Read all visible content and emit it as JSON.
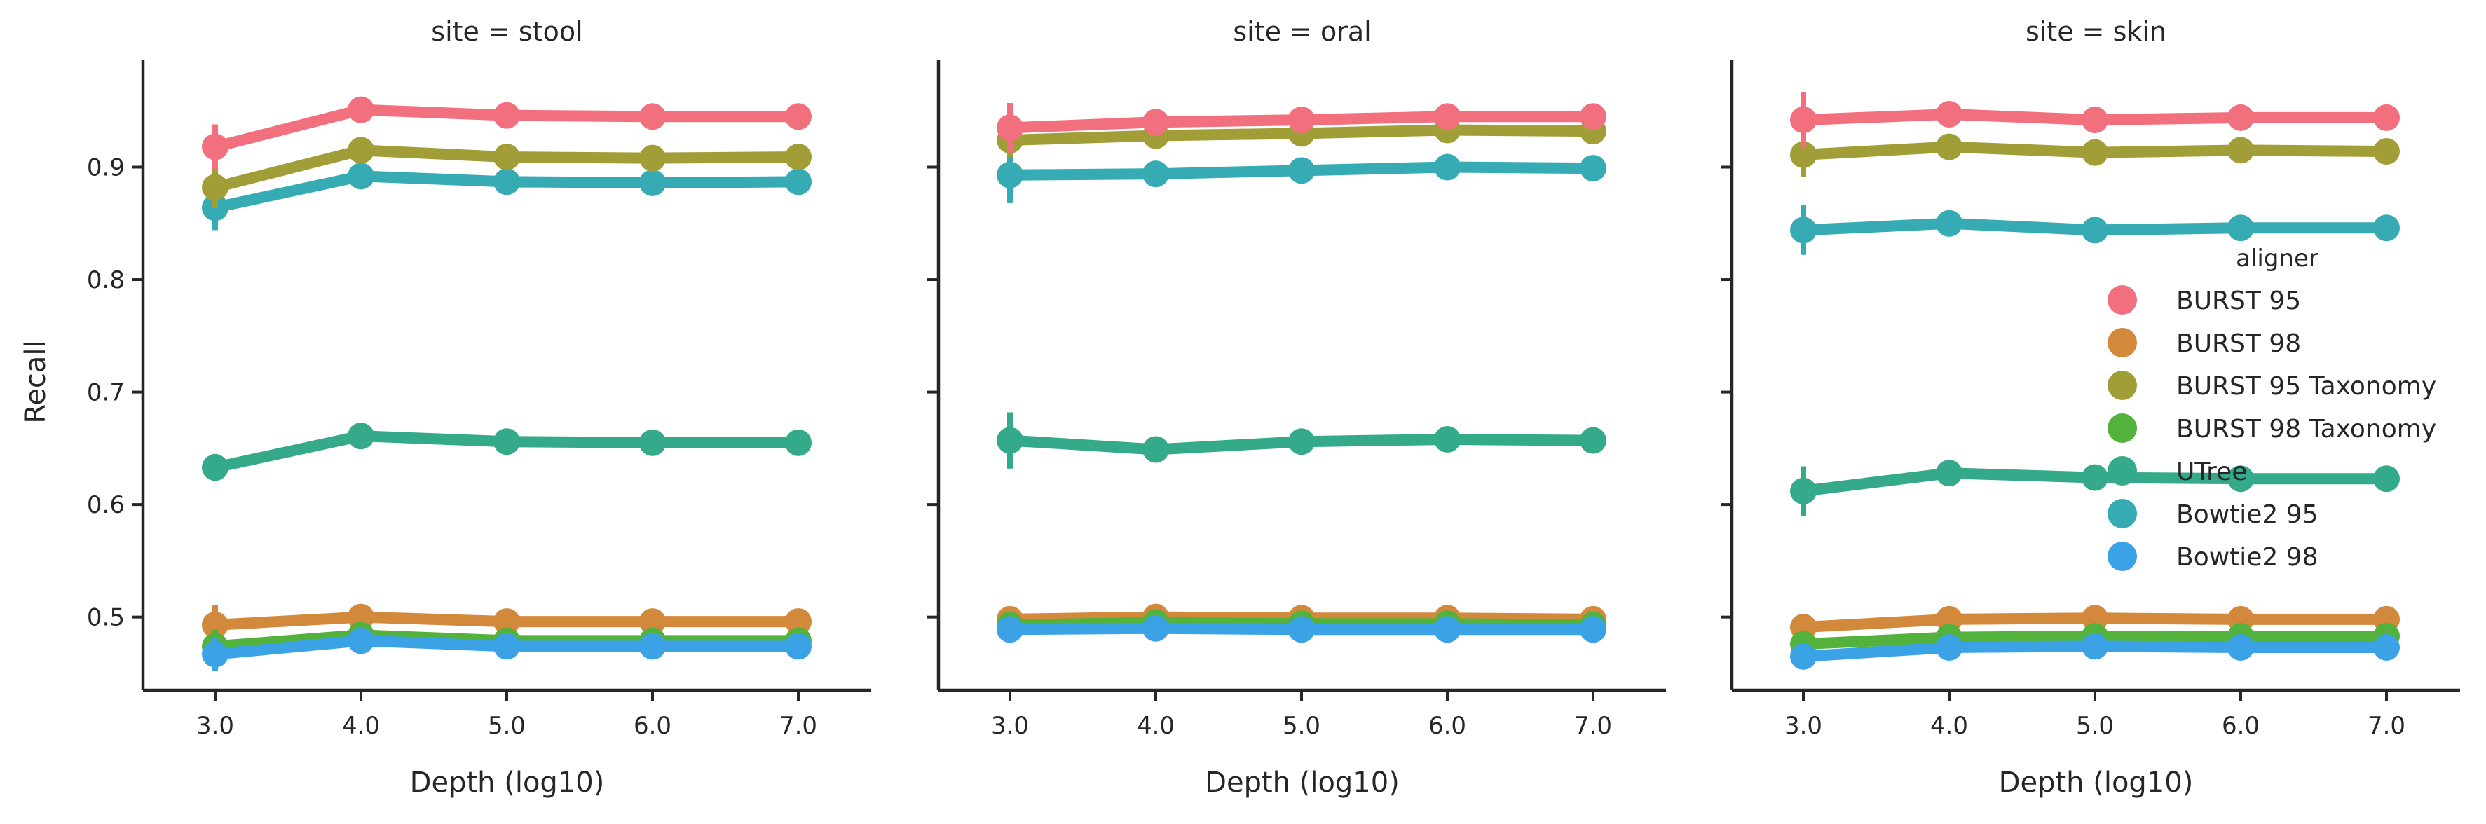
{
  "chart_data": {
    "type": "line",
    "legend": {
      "title": "aligner",
      "placement": "right, inside last panel",
      "entries": [
        "BURST 95",
        "BURST 98",
        "BURST 95 Taxonomy",
        "BURST 98 Taxonomy",
        "UTree",
        "Bowtie2 95",
        "Bowtie2 98"
      ]
    },
    "colors": {
      "BURST 95": "#f2707e",
      "BURST 98": "#d3893c",
      "BURST 95 Taxonomy": "#a19e38",
      "BURST 98 Taxonomy": "#52b23c",
      "UTree": "#35aa8a",
      "Bowtie2 95": "#37abb3",
      "Bowtie2 98": "#3ba2e6"
    },
    "draw_order": [
      "BURST 98",
      "BURST 98 Taxonomy",
      "Bowtie2 98",
      "UTree",
      "Bowtie2 95",
      "BURST 95 Taxonomy",
      "BURST 95"
    ],
    "x": [
      "3.0",
      "4.0",
      "5.0",
      "6.0",
      "7.0"
    ],
    "xlabel": "Depth (log10)",
    "ylabel": "Recall",
    "ylim": [
      0.435,
      0.995
    ],
    "yticks": [
      "0.5",
      "0.6",
      "0.7",
      "0.8",
      "0.9"
    ],
    "grid": false,
    "panels": [
      {
        "title": "site = stool",
        "series": [
          {
            "name": "BURST 95",
            "values": [
              0.918,
              0.951,
              0.946,
              0.945,
              0.945
            ],
            "err": [
              0.02,
              0,
              0,
              0,
              0
            ]
          },
          {
            "name": "BURST 98",
            "values": [
              0.493,
              0.5,
              0.496,
              0.496,
              0.496
            ],
            "err": [
              0.018,
              0,
              0,
              0,
              0
            ]
          },
          {
            "name": "BURST 95 Taxonomy",
            "values": [
              0.882,
              0.915,
              0.909,
              0.908,
              0.909
            ],
            "err": [
              0.018,
              0,
              0,
              0,
              0
            ]
          },
          {
            "name": "BURST 98 Taxonomy",
            "values": [
              0.474,
              0.484,
              0.479,
              0.479,
              0.479
            ],
            "err": [
              0.015,
              0,
              0,
              0,
              0
            ]
          },
          {
            "name": "UTree",
            "values": [
              0.633,
              0.661,
              0.656,
              0.655,
              0.655
            ],
            "err": [
              0.012,
              0,
              0,
              0,
              0
            ]
          },
          {
            "name": "Bowtie2 95",
            "values": [
              0.864,
              0.892,
              0.887,
              0.886,
              0.887
            ],
            "err": [
              0.02,
              0,
              0,
              0,
              0
            ]
          },
          {
            "name": "Bowtie2 98",
            "values": [
              0.467,
              0.479,
              0.474,
              0.474,
              0.474
            ],
            "err": [
              0.015,
              0,
              0,
              0,
              0
            ]
          }
        ]
      },
      {
        "title": "site = oral",
        "series": [
          {
            "name": "BURST 95",
            "values": [
              0.935,
              0.94,
              0.942,
              0.945,
              0.945
            ],
            "err": [
              0.022,
              0,
              0,
              0,
              0
            ]
          },
          {
            "name": "BURST 98",
            "values": [
              0.498,
              0.5,
              0.499,
              0.499,
              0.498
            ],
            "err": [
              0.01,
              0,
              0,
              0,
              0
            ]
          },
          {
            "name": "BURST 95 Taxonomy",
            "values": [
              0.924,
              0.928,
              0.93,
              0.933,
              0.932
            ],
            "err": [
              0.015,
              0,
              0,
              0,
              0
            ]
          },
          {
            "name": "BURST 98 Taxonomy",
            "values": [
              0.493,
              0.495,
              0.494,
              0.494,
              0.493
            ],
            "err": [
              0.01,
              0,
              0,
              0,
              0
            ]
          },
          {
            "name": "UTree",
            "values": [
              0.657,
              0.649,
              0.656,
              0.658,
              0.657
            ],
            "err": [
              0.025,
              0,
              0,
              0,
              0
            ]
          },
          {
            "name": "Bowtie2 95",
            "values": [
              0.893,
              0.894,
              0.897,
              0.9,
              0.899
            ],
            "err": [
              0.025,
              0,
              0,
              0,
              0
            ]
          },
          {
            "name": "Bowtie2 98",
            "values": [
              0.489,
              0.49,
              0.489,
              0.489,
              0.489
            ],
            "err": [
              0.01,
              0,
              0,
              0,
              0
            ]
          }
        ]
      },
      {
        "title": "site = skin",
        "series": [
          {
            "name": "BURST 95",
            "values": [
              0.942,
              0.947,
              0.942,
              0.944,
              0.944
            ],
            "err": [
              0.025,
              0,
              0,
              0,
              0
            ]
          },
          {
            "name": "BURST 98",
            "values": [
              0.491,
              0.498,
              0.499,
              0.498,
              0.498
            ],
            "err": [
              0.01,
              0,
              0,
              0,
              0
            ]
          },
          {
            "name": "BURST 95 Taxonomy",
            "values": [
              0.911,
              0.918,
              0.913,
              0.915,
              0.914
            ],
            "err": [
              0.02,
              0,
              0,
              0,
              0
            ]
          },
          {
            "name": "BURST 98 Taxonomy",
            "values": [
              0.476,
              0.482,
              0.483,
              0.483,
              0.483
            ],
            "err": [
              0.01,
              0,
              0,
              0,
              0
            ]
          },
          {
            "name": "UTree",
            "values": [
              0.612,
              0.628,
              0.624,
              0.623,
              0.623
            ],
            "err": [
              0.022,
              0,
              0,
              0,
              0
            ]
          },
          {
            "name": "Bowtie2 95",
            "values": [
              0.844,
              0.85,
              0.844,
              0.846,
              0.846
            ],
            "err": [
              0.022,
              0,
              0,
              0,
              0
            ]
          },
          {
            "name": "Bowtie2 98",
            "values": [
              0.465,
              0.473,
              0.474,
              0.473,
              0.473
            ],
            "err": [
              0.01,
              0,
              0,
              0,
              0
            ]
          }
        ]
      }
    ]
  }
}
